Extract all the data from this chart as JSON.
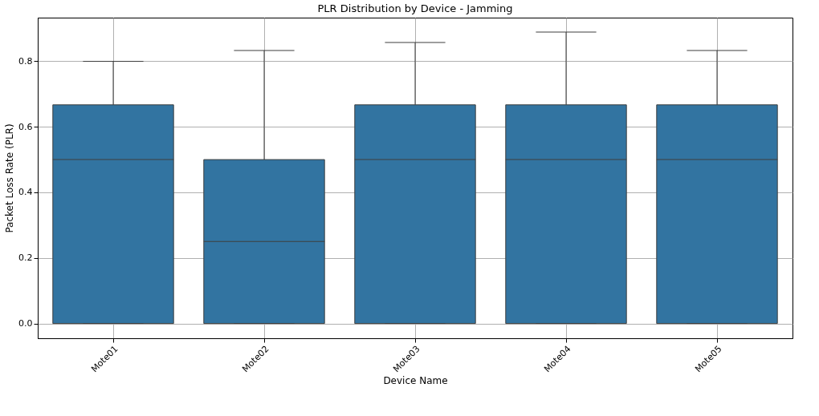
{
  "chart_data": {
    "type": "box",
    "title": "PLR Distribution by Device - Jamming",
    "xlabel": "Device Name",
    "ylabel": "Packet Loss Rate (PLR)",
    "categories": [
      "Mote01",
      "Mote02",
      "Mote03",
      "Mote04",
      "Mote05"
    ],
    "boxes": [
      {
        "low": 0,
        "q1": 0,
        "median": 0.5,
        "q3": 0.667,
        "high": 0.8
      },
      {
        "low": 0,
        "q1": 0,
        "median": 0.25,
        "q3": 0.5,
        "high": 0.833
      },
      {
        "low": 0,
        "q1": 0,
        "median": 0.5,
        "q3": 0.667,
        "high": 0.857
      },
      {
        "low": 0,
        "q1": 0,
        "median": 0.5,
        "q3": 0.667,
        "high": 0.889
      },
      {
        "low": 0,
        "q1": 0,
        "median": 0.5,
        "q3": 0.667,
        "high": 0.833
      }
    ],
    "color": "#3274a1",
    "ylim": [
      -0.045,
      0.933
    ],
    "yticks": [
      {
        "value": 0,
        "label": "0.0"
      },
      0.2,
      0.4,
      0.6,
      0.8
    ],
    "grid": true
  }
}
